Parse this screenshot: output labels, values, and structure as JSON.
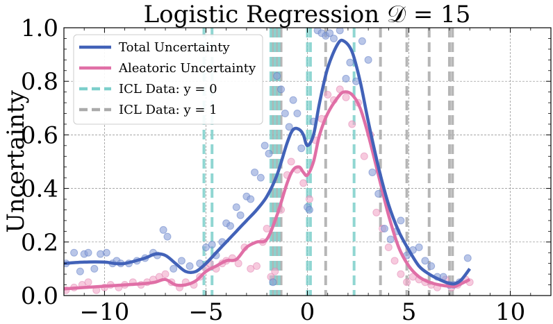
{
  "chart_data": {
    "type": "line",
    "title": "Logistic Regression 𝒟 = 15",
    "xlabel": "",
    "ylabel": "Uncertainty",
    "xlim": [
      -12,
      12
    ],
    "ylim": [
      0,
      1
    ],
    "xticks": [
      -10,
      -5,
      0,
      5,
      10
    ],
    "xtick_labels": [
      "−10",
      "−5",
      "0",
      "5",
      "10"
    ],
    "yticks": [
      0,
      0.2,
      0.4,
      0.6,
      0.8,
      1.0
    ],
    "ytick_labels": [
      "0.0",
      "0.2",
      "0.4",
      "0.6",
      "0.8",
      "1.0"
    ],
    "grid": true,
    "legend_position": "top-left",
    "colors": {
      "total": "#4262b8",
      "aleatoric": "#e06fa6",
      "icl0": "#7dcfcb",
      "icl1": "#aaaaaa",
      "total_points": "#8aa0d8",
      "aleatoric_points": "#f1a7c8"
    },
    "legend": [
      {
        "label": "Total Uncertainty",
        "style": "solid",
        "color": "#4262b8"
      },
      {
        "label": "Aleatoric Uncertainty",
        "style": "solid",
        "color": "#e06fa6"
      },
      {
        "label": "ICL Data: y = 0",
        "style": "dashed",
        "color": "#7dcfcb"
      },
      {
        "label": "ICL Data: y = 1",
        "style": "dashed",
        "color": "#aaaaaa"
      }
    ],
    "series": [
      {
        "name": "Total Uncertainty",
        "x": [
          -12,
          -11,
          -10,
          -9.5,
          -9,
          -8,
          -7.5,
          -7,
          -6.5,
          -6,
          -5.5,
          -5,
          -4.5,
          -4,
          -3.5,
          -3,
          -2.5,
          -2,
          -1.5,
          -1,
          -0.7,
          -0.4,
          -0.2,
          0,
          0.3,
          0.6,
          1.0,
          1.5,
          1.8,
          2.2,
          2.6,
          3.0,
          3.5,
          4.0,
          4.5,
          5.0,
          5.5,
          6.0,
          6.5,
          7.0,
          7.3,
          7.6,
          8.0
        ],
        "y": [
          0.12,
          0.125,
          0.125,
          0.12,
          0.12,
          0.14,
          0.155,
          0.15,
          0.12,
          0.09,
          0.09,
          0.12,
          0.16,
          0.2,
          0.24,
          0.28,
          0.32,
          0.37,
          0.45,
          0.57,
          0.62,
          0.62,
          0.6,
          0.56,
          0.6,
          0.72,
          0.85,
          0.94,
          0.95,
          0.91,
          0.8,
          0.65,
          0.48,
          0.34,
          0.24,
          0.17,
          0.11,
          0.08,
          0.06,
          0.045,
          0.045,
          0.06,
          0.1
        ]
      },
      {
        "name": "Aleatoric Uncertainty",
        "x": [
          -12,
          -11,
          -10,
          -9,
          -8,
          -7.5,
          -7,
          -6.5,
          -6,
          -5.5,
          -5,
          -4.5,
          -4,
          -3.5,
          -3,
          -2.5,
          -2,
          -1.5,
          -1,
          -0.7,
          -0.4,
          -0.2,
          0,
          0.3,
          0.6,
          1.0,
          1.5,
          1.8,
          2.2,
          2.6,
          3.0,
          3.5,
          4.0,
          4.5,
          5.0,
          5.5,
          6.0,
          6.5,
          7.0,
          7.3,
          7.6,
          8.0
        ],
        "y": [
          0.025,
          0.03,
          0.035,
          0.04,
          0.045,
          0.05,
          0.06,
          0.04,
          0.04,
          0.055,
          0.09,
          0.11,
          0.13,
          0.135,
          0.18,
          0.2,
          0.21,
          0.3,
          0.42,
          0.47,
          0.48,
          0.46,
          0.45,
          0.5,
          0.6,
          0.68,
          0.74,
          0.76,
          0.75,
          0.7,
          0.6,
          0.45,
          0.3,
          0.18,
          0.11,
          0.07,
          0.05,
          0.04,
          0.035,
          0.035,
          0.045,
          0.06
        ]
      }
    ],
    "icl_data_y0": [
      -5.1,
      -4.7,
      -1.8,
      -1.6,
      -1.4,
      0.0,
      0.15,
      2.3
    ],
    "icl_data_y1": [
      -1.7,
      -1.5,
      -1.3,
      0.9,
      3.6,
      4.9,
      6.0,
      7.0,
      7.15
    ],
    "scatter_total": [
      [
        -11.9,
        0.12
      ],
      [
        -11.5,
        0.16
      ],
      [
        -11.2,
        0.09
      ],
      [
        -11.0,
        0.155
      ],
      [
        -10.8,
        0.16
      ],
      [
        -10.5,
        0.1
      ],
      [
        -10.2,
        0.155
      ],
      [
        -9.9,
        0.16
      ],
      [
        -9.6,
        0.12
      ],
      [
        -9.4,
        0.13
      ],
      [
        -9.2,
        0.12
      ],
      [
        -8.8,
        0.12
      ],
      [
        -8.4,
        0.13
      ],
      [
        -8.0,
        0.14
      ],
      [
        -7.6,
        0.16
      ],
      [
        -7.4,
        0.15
      ],
      [
        -7.1,
        0.245
      ],
      [
        -6.9,
        0.22
      ],
      [
        -6.6,
        0.1
      ],
      [
        -6.2,
        0.13
      ],
      [
        -5.8,
        0.11
      ],
      [
        -5.3,
        0.12
      ],
      [
        -5.0,
        0.18
      ],
      [
        -4.7,
        0.19
      ],
      [
        -4.5,
        0.15
      ],
      [
        -4.2,
        0.2
      ],
      [
        -4.0,
        0.27
      ],
      [
        -3.8,
        0.26
      ],
      [
        -3.5,
        0.33
      ],
      [
        -3.3,
        0.3
      ],
      [
        -3.0,
        0.37
      ],
      [
        -2.8,
        0.36
      ],
      [
        -2.6,
        0.46
      ],
      [
        -2.3,
        0.44
      ],
      [
        -2.1,
        0.56
      ],
      [
        -1.9,
        0.53
      ],
      [
        -1.7,
        0.05
      ],
      [
        -1.5,
        0.82
      ],
      [
        -1.3,
        0.77
      ],
      [
        -1.1,
        0.68
      ],
      [
        -0.9,
        0.63
      ],
      [
        -0.7,
        0.73
      ],
      [
        -0.5,
        0.68
      ],
      [
        -0.3,
        0.55
      ],
      [
        0.0,
        0.33
      ],
      [
        0.1,
        0.32
      ],
      [
        0.3,
        0.65
      ],
      [
        0.5,
        0.99
      ],
      [
        0.7,
        0.98
      ],
      [
        0.9,
        0.97
      ],
      [
        1.1,
        0.98
      ],
      [
        1.3,
        0.96
      ],
      [
        1.6,
        0.99
      ],
      [
        1.9,
        0.81
      ],
      [
        2.1,
        0.87
      ],
      [
        2.4,
        0.8
      ],
      [
        2.7,
        0.95
      ],
      [
        3.0,
        0.88
      ],
      [
        3.2,
        0.46
      ],
      [
        3.5,
        0.38
      ],
      [
        3.8,
        0.25
      ],
      [
        4.1,
        0.21
      ],
      [
        4.4,
        0.24
      ],
      [
        4.6,
        0.28
      ],
      [
        4.9,
        0.15
      ],
      [
        5.2,
        0.17
      ],
      [
        5.5,
        0.18
      ],
      [
        5.8,
        0.13
      ],
      [
        6.1,
        0.11
      ],
      [
        6.4,
        0.07
      ],
      [
        6.7,
        0.07
      ],
      [
        7.0,
        0.04
      ],
      [
        7.2,
        0.04
      ],
      [
        7.5,
        0.05
      ],
      [
        7.9,
        0.14
      ]
    ],
    "scatter_aleatoric": [
      [
        -11.9,
        0.02
      ],
      [
        -11.5,
        0.03
      ],
      [
        -11.1,
        0.04
      ],
      [
        -10.8,
        0.05
      ],
      [
        -10.4,
        0.02
      ],
      [
        -10.0,
        0.03
      ],
      [
        -9.7,
        0.04
      ],
      [
        -9.3,
        0.03
      ],
      [
        -9.0,
        0.04
      ],
      [
        -8.6,
        0.05
      ],
      [
        -8.2,
        0.04
      ],
      [
        -7.9,
        0.05
      ],
      [
        -7.6,
        0.06
      ],
      [
        -7.3,
        0.07
      ],
      [
        -7.0,
        0.08
      ],
      [
        -6.7,
        0.05
      ],
      [
        -6.3,
        0.03
      ],
      [
        -6.0,
        0.05
      ],
      [
        -5.6,
        0.04
      ],
      [
        -5.3,
        0.07
      ],
      [
        -5.0,
        0.1
      ],
      [
        -4.8,
        0.12
      ],
      [
        -4.5,
        0.1
      ],
      [
        -4.2,
        0.12
      ],
      [
        -4.0,
        0.13
      ],
      [
        -3.7,
        0.14
      ],
      [
        -3.4,
        0.12
      ],
      [
        -3.1,
        0.18
      ],
      [
        -2.8,
        0.1
      ],
      [
        -2.5,
        0.11
      ],
      [
        -2.2,
        0.2
      ],
      [
        -2.0,
        0.25
      ],
      [
        -1.8,
        0.07
      ],
      [
        -1.6,
        0.09
      ],
      [
        -1.3,
        0.32
      ],
      [
        -1.0,
        0.45
      ],
      [
        -0.8,
        0.5
      ],
      [
        -0.5,
        0.47
      ],
      [
        -0.2,
        0.42
      ],
      [
        0.1,
        0.36
      ],
      [
        0.4,
        0.58
      ],
      [
        0.7,
        0.66
      ],
      [
        1.0,
        0.75
      ],
      [
        1.3,
        0.73
      ],
      [
        1.6,
        0.77
      ],
      [
        1.9,
        0.74
      ],
      [
        2.2,
        0.64
      ],
      [
        2.5,
        0.72
      ],
      [
        2.8,
        0.52
      ],
      [
        3.1,
        0.6
      ],
      [
        3.4,
        0.31
      ],
      [
        3.7,
        0.25
      ],
      [
        4.0,
        0.18
      ],
      [
        4.3,
        0.13
      ],
      [
        4.6,
        0.08
      ],
      [
        4.9,
        0.05
      ],
      [
        5.2,
        0.07
      ],
      [
        5.5,
        0.06
      ],
      [
        5.8,
        0.05
      ],
      [
        6.1,
        0.04
      ],
      [
        6.4,
        0.03
      ],
      [
        6.8,
        0.06
      ],
      [
        7.1,
        0.03
      ],
      [
        7.4,
        0.04
      ],
      [
        7.8,
        0.06
      ],
      [
        8.0,
        0.05
      ]
    ]
  }
}
